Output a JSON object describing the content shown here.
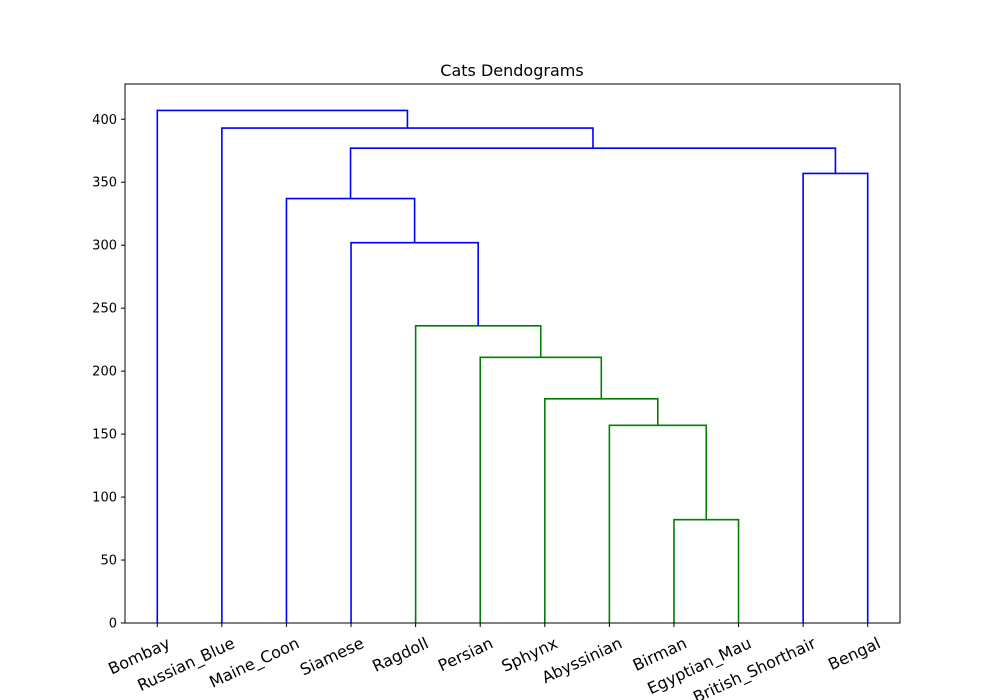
{
  "chart_data": {
    "type": "dendrogram",
    "title": "Cats Dendograms",
    "xlabel": "",
    "ylabel": "",
    "ylim": [
      0,
      428
    ],
    "yticks": [
      0,
      50,
      100,
      150,
      200,
      250,
      300,
      350,
      400
    ],
    "leaves": [
      "Bombay",
      "Russian_Blue",
      "Maine_Coon",
      "Siamese",
      "Ragdoll",
      "Persian",
      "Sphynx",
      "Abyssinian",
      "Birman",
      "Egyptian_Mau",
      "British_Shorthair",
      "Bengal"
    ],
    "merges": [
      {
        "left": "Birman",
        "right": "Egyptian_Mau",
        "height": 82,
        "color": "#008000"
      },
      {
        "left": "Abyssinian",
        "right": "C1",
        "height": 157,
        "color": "#008000"
      },
      {
        "left": "Sphynx",
        "right": "C2",
        "height": 178,
        "color": "#008000"
      },
      {
        "left": "Persian",
        "right": "C3",
        "height": 211,
        "color": "#008000"
      },
      {
        "left": "Ragdoll",
        "right": "C4",
        "height": 236,
        "color": "#008000"
      },
      {
        "left": "Siamese",
        "right": "C5",
        "height": 302,
        "color": "#0000ff"
      },
      {
        "left": "Maine_Coon",
        "right": "C6",
        "height": 337,
        "color": "#0000ff"
      },
      {
        "left": "British_Shorthair",
        "right": "Bengal",
        "height": 357,
        "color": "#0000ff"
      },
      {
        "left": "C7",
        "right": "C8",
        "height": 377,
        "color": "#0000ff"
      },
      {
        "left": "Russian_Blue",
        "right": "C9",
        "height": 393,
        "color": "#0000ff"
      },
      {
        "left": "Bombay",
        "right": "C10",
        "height": 407,
        "color": "#0000ff"
      }
    ],
    "grid": false,
    "legend": "none"
  }
}
